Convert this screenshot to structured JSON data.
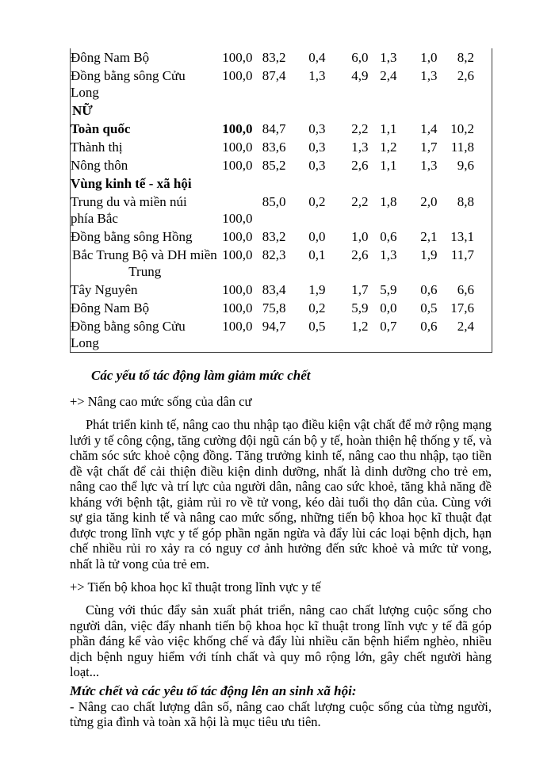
{
  "table": {
    "rows": [
      {
        "label": "Đông Nam Bộ",
        "values": [
          "100,0",
          "83,2",
          "0,4",
          "6,0",
          "1,3",
          "1,0",
          "8,2"
        ]
      },
      {
        "label_lines": [
          "Đồng bằng sông Cửu",
          "Long"
        ],
        "values": [
          "100,0",
          "87,4",
          "1,3",
          "4,9",
          "2,4",
          "1,3",
          "2,6"
        ]
      },
      {
        "label": "NỮ",
        "flush": true,
        "bold_label": true,
        "values": []
      },
      {
        "label": "Toàn quốc",
        "bold_label": true,
        "bold_first_value": true,
        "values": [
          "100,0",
          "84,7",
          "0,3",
          "2,2",
          "1,1",
          "1,4",
          "10,2"
        ]
      },
      {
        "label": "Thành thị",
        "values": [
          "100,0",
          "83,6",
          "0,3",
          "1,3",
          "1,2",
          "1,7",
          "11,8"
        ]
      },
      {
        "label": "Nông thôn",
        "values": [
          "100,0",
          "85,2",
          "0,3",
          "2,6",
          "1,1",
          "1,3",
          "9,6"
        ]
      },
      {
        "label": "Vùng kinh tế - xã hội",
        "bold_label": true,
        "values": []
      },
      {
        "label_lines": [
          "Trung du và miền núi",
          "phía Bắc"
        ],
        "values": [
          "\n100,0",
          "85,0",
          "0,2",
          "2,2",
          "1,8",
          "2,0",
          "8,8"
        ]
      },
      {
        "label": "Đồng bằng sông Hồng",
        "values": [
          "100,0",
          "83,2",
          "0,0",
          "1,0",
          "0,6",
          "2,1",
          "13,1"
        ]
      },
      {
        "label_lines": [
          "Bắc Trung Bộ và DH miền",
          "Trung"
        ],
        "flush": true,
        "center_line2": true,
        "values": [
          "100,0",
          "82,3",
          "0,1",
          "2,6",
          "1,3",
          "1,9",
          "11,7"
        ]
      },
      {
        "label": "Tây Nguyên",
        "values": [
          "100,0",
          "83,4",
          "1,9",
          "1,7",
          "5,9",
          "0,6",
          "6,6"
        ]
      },
      {
        "label": "Đông Nam Bộ",
        "values": [
          "100,0",
          "75,8",
          "0,2",
          "5,9",
          "0,0",
          "0,5",
          "17,6"
        ]
      },
      {
        "label_lines": [
          "Đồng bằng sông Cửu",
          "Long"
        ],
        "values": [
          "100,0",
          "94,7",
          "0,5",
          "1,2",
          "0,7",
          "0,6",
          "2,4"
        ]
      }
    ]
  },
  "content": {
    "heading1": "Các yếu tố tác động làm giảm mức chết",
    "subpoint1": "+> Nâng cao mức sống của dân cư",
    "para1": "Phát triển kinh tế, nâng cao thu nhập tạo điều kiện vật chất để mở rộng mạng lưới y tế công cộng, tăng cường đội ngũ cán bộ y tế, hoàn thiện hệ thống y tế, và chăm sóc sức khoẻ cộng đồng. Tăng trưởng kinh tế, nâng cao thu nhập, tạo tiền đề vật chất để cải thiện điều kiện dinh dưỡng, nhất là dinh dưỡng cho trẻ em, nâng cao thể lực và trí lực của người dân, nâng cao sức khoẻ, tăng khả năng đề kháng với bệnh tật, giảm rủi ro về tử vong, kéo dài tuổi thọ dân của. Cùng với sự gia tăng kinh tế và nâng cao mức sống, những tiến bộ khoa học kĩ thuật đạt được trong lĩnh vực y tế góp phần ngăn ngừa và đẩy lùi các loại bệnh dịch, hạn chế nhiều rủi ro xảy ra có nguy cơ ảnh hưởng đến sức khoẻ và mức tử vong, nhất là tử vong của trẻ em.",
    "subpoint2": "+> Tiến bộ khoa học kĩ thuật trong lĩnh vực y tế",
    "para2": "Cùng với thúc đẩy sản xuất phát triển, nâng cao chất lượng cuộc sống cho người dân, việc đẩy nhanh tiến bộ khoa học kĩ thuật trong lĩnh vực y tế đã góp phần đáng kể vào việc khống chế và đẩy lùi nhiều căn bệnh hiểm nghèo, nhiều dịch bệnh nguy hiểm với tính chất và quy mô rộng lớn, gây chết người hàng loạt...",
    "heading2": "Mức chết và các yêu tố tác động lên an sinh xã hội:",
    "para3": "- Nâng cao chất lượng dân số, nâng cao chất lượng cuộc sống của từng người, từng gia đình và toàn xã hội là mục tiêu ưu tiên."
  }
}
